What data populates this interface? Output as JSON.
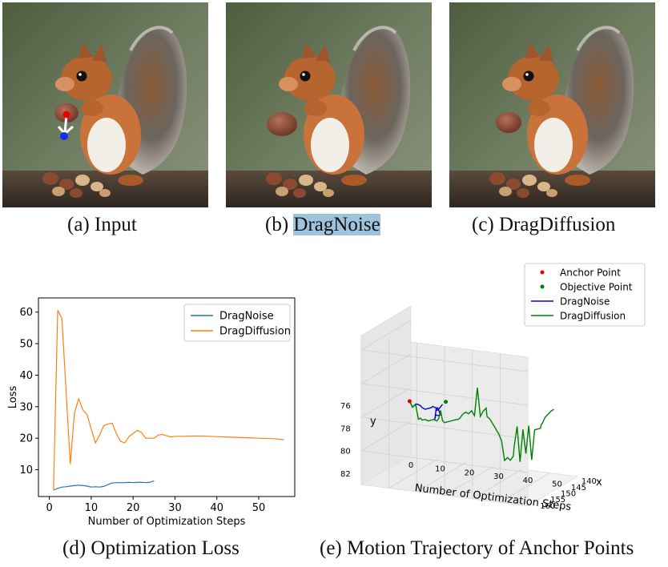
{
  "panels": {
    "a": {
      "prefix": "(a) ",
      "name": "Input"
    },
    "b": {
      "prefix": "(b) ",
      "name": "DragNoise"
    },
    "c": {
      "prefix": "(c) ",
      "name": "DragDiffusion"
    }
  },
  "captions": {
    "d": "(d) Optimization Loss",
    "e": "(e) Motion Trajectory of Anchor Points"
  },
  "colors": {
    "dragnoise": "#1f77b4",
    "dragdiffusion": "#ff7f0e",
    "traj_dragnoise": "#0000dd",
    "traj_dragdiffusion": "#008000",
    "anchor": "#ee0000",
    "objective": "#008000",
    "highlight": "#9ec3dc"
  },
  "chart_data": [
    {
      "type": "line",
      "xlabel": "Number of Optimization Steps",
      "ylabel": "Loss",
      "xlim": [
        -2.6,
        58.6
      ],
      "ylim": [
        1.5,
        64.5
      ],
      "xticks": [
        0,
        10,
        20,
        30,
        40,
        50
      ],
      "yticks": [
        10,
        20,
        30,
        40,
        50,
        60
      ],
      "grid": false,
      "legend": "upper-right",
      "series": [
        {
          "name": "DragNoise",
          "color": "#1f77b4",
          "x": [
            1,
            2,
            3,
            4,
            5,
            6,
            7,
            8,
            9,
            10,
            11,
            12,
            13,
            14,
            15,
            16,
            17,
            18,
            19,
            20,
            21,
            22,
            23,
            24,
            25
          ],
          "y": [
            3.5,
            4.1,
            4.5,
            4.6,
            4.8,
            5.0,
            5.1,
            5.0,
            4.8,
            4.5,
            4.6,
            4.5,
            4.7,
            5.3,
            5.8,
            5.9,
            5.9,
            5.9,
            6.0,
            5.9,
            6.0,
            6.0,
            5.9,
            6.0,
            6.5
          ]
        },
        {
          "name": "DragDiffusion",
          "color": "#ff7f0e",
          "x": [
            1,
            2,
            3,
            4,
            5,
            6,
            7,
            8,
            9,
            10,
            11,
            12,
            13,
            14,
            15,
            16,
            17,
            18,
            19,
            20,
            21,
            22,
            23,
            24,
            25,
            26,
            27,
            28,
            29,
            30,
            32,
            34,
            36,
            38,
            40,
            42,
            44,
            46,
            48,
            50,
            52,
            54,
            56
          ],
          "y": [
            3.5,
            60.6,
            58.0,
            35.0,
            11.8,
            28.0,
            32.5,
            29.0,
            27.5,
            23.0,
            18.5,
            21.0,
            24.0,
            24.5,
            24.8,
            21.5,
            19.0,
            18.5,
            20.5,
            21.5,
            22.5,
            21.8,
            20.0,
            20.0,
            20.0,
            21.0,
            21.2,
            20.8,
            20.4,
            20.6,
            20.6,
            20.7,
            20.7,
            20.6,
            20.5,
            20.4,
            20.3,
            20.2,
            20.1,
            20.0,
            19.9,
            19.8,
            19.5
          ]
        }
      ]
    },
    {
      "type": "line",
      "projection": "3d",
      "xlabel": "x",
      "ylabel": "y",
      "zlabel": "Number of Optimization Steps",
      "x_axis_ticks": [
        140,
        145,
        150,
        155,
        160
      ],
      "y_axis_ticks": [
        76,
        78,
        80,
        82
      ],
      "step_axis_ticks": [
        0,
        10,
        20,
        30,
        40,
        50
      ],
      "legend": "top",
      "markers": [
        {
          "name": "Anchor Point",
          "color": "#ee0000"
        },
        {
          "name": "Objective Point",
          "color": "#008000"
        }
      ],
      "series": [
        {
          "name": "DragNoise",
          "color": "#0000dd",
          "steps": [
            1,
            2,
            3,
            4,
            5,
            6,
            7,
            8,
            9,
            10,
            11,
            12,
            13,
            14,
            15,
            16,
            17,
            18,
            19,
            20,
            21,
            22,
            23,
            24,
            25
          ],
          "x": [
            140,
            140,
            140,
            140.5,
            140.5,
            141,
            141,
            141,
            141,
            141.5,
            141.5,
            142,
            143,
            144,
            145,
            147,
            150,
            152,
            153,
            154,
            155,
            156,
            157,
            157.5,
            158
          ],
          "y": [
            78,
            78.5,
            78.2,
            78.1,
            78.2,
            78.3,
            78.4,
            78.3,
            78.2,
            78.0,
            78.1,
            78.0,
            78.0,
            78.1,
            78.2,
            78.0,
            77.6,
            77.8,
            77.2,
            76.4,
            76.5,
            76.3,
            76.1,
            75.8,
            75.5
          ]
        },
        {
          "name": "DragDiffusion",
          "color": "#008000",
          "steps": [
            1,
            2,
            3,
            4,
            5,
            6,
            7,
            8,
            9,
            10,
            11,
            12,
            13,
            14,
            15,
            16,
            17,
            18,
            19,
            20,
            21,
            22,
            23,
            24,
            25,
            26,
            27,
            28,
            29,
            30,
            31,
            32,
            33,
            34,
            35,
            36,
            37,
            38,
            39,
            40,
            41,
            42,
            43,
            44,
            45,
            46,
            47,
            48,
            49,
            50,
            51,
            52,
            53,
            54,
            55,
            56
          ],
          "x": [
            140,
            140,
            140,
            140,
            140.5,
            141,
            141,
            141,
            141,
            141,
            141,
            141.5,
            142,
            142.5,
            143,
            143,
            143,
            143,
            143,
            143.5,
            144,
            144,
            144,
            144,
            144,
            144,
            144,
            144,
            144,
            144,
            145,
            145,
            145,
            145,
            145,
            145,
            145,
            145,
            145,
            145,
            146,
            146,
            146,
            146,
            146,
            146,
            146,
            146,
            146,
            146,
            147,
            148,
            148,
            148,
            148,
            148
          ],
          "y": [
            78,
            78.5,
            78.2,
            79.5,
            79.3,
            79.4,
            79.3,
            79.4,
            79.3,
            79.2,
            79.3,
            79.0,
            78.2,
            79.0,
            79.1,
            79.0,
            78.9,
            78.8,
            78.7,
            78.6,
            78.4,
            78.0,
            77.8,
            77.9,
            77.6,
            78.0,
            75.5,
            78.0,
            77.5,
            77.2,
            77.8,
            78.0,
            78.4,
            78.8,
            79.2,
            79.8,
            81.5,
            81.2,
            81.4,
            81.0,
            80.0,
            78.2,
            81.3,
            78.4,
            80.5,
            78.0,
            81.0,
            78.3,
            78.2,
            78.1,
            77.6,
            77.4,
            76.8,
            76.5,
            76.2,
            76.0
          ]
        }
      ]
    }
  ]
}
